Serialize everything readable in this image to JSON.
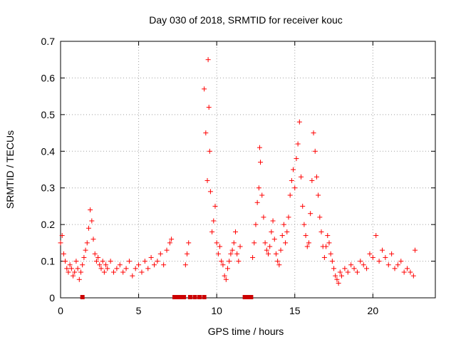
{
  "chart_data": {
    "type": "scatter",
    "title": "Day 030 of 2018, SRMTID for receiver kouc",
    "xlabel": "GPS time / hours",
    "ylabel": "SRMTID / TECUs",
    "xlim": [
      0,
      24
    ],
    "ylim": [
      0,
      0.7
    ],
    "x_ticks": [
      0,
      5,
      10,
      15,
      20
    ],
    "y_ticks": [
      0,
      0.1,
      0.2,
      0.3,
      0.4,
      0.5,
      0.6,
      0.7
    ],
    "x_tick_labels": [
      "0",
      "5",
      "10",
      "15",
      "20"
    ],
    "y_tick_labels": [
      "0",
      "0.1",
      "0.2",
      "0.3",
      "0.4",
      "0.5",
      "0.6",
      "0.7"
    ],
    "grid": true,
    "marker": "+",
    "series_color": "#ff0000",
    "gap_marker_color": "#cc0000",
    "series": [
      {
        "name": "SRMTID",
        "x": [
          0.0,
          0.1,
          0.2,
          0.3,
          0.4,
          0.5,
          0.6,
          0.7,
          0.8,
          0.9,
          1.0,
          1.1,
          1.2,
          1.3,
          1.4,
          1.5,
          1.6,
          1.7,
          1.8,
          1.9,
          2.0,
          2.1,
          2.2,
          2.3,
          2.4,
          2.5,
          2.6,
          2.7,
          2.8,
          2.9,
          3.0,
          3.2,
          3.4,
          3.6,
          3.8,
          4.0,
          4.2,
          4.4,
          4.6,
          4.8,
          5.0,
          5.2,
          5.4,
          5.6,
          5.8,
          6.0,
          6.2,
          6.4,
          6.6,
          6.8,
          7.0,
          7.1,
          8.0,
          8.1,
          8.2,
          9.2,
          9.3,
          9.4,
          9.45,
          9.5,
          9.55,
          9.6,
          9.7,
          9.8,
          9.9,
          10.0,
          10.1,
          10.2,
          10.3,
          10.4,
          10.5,
          10.6,
          10.7,
          10.8,
          10.9,
          11.0,
          11.1,
          11.2,
          11.3,
          11.4,
          11.5,
          12.3,
          12.4,
          12.5,
          12.6,
          12.7,
          12.75,
          12.8,
          12.9,
          13.0,
          13.1,
          13.2,
          13.3,
          13.4,
          13.5,
          13.6,
          13.7,
          13.8,
          13.9,
          14.0,
          14.1,
          14.2,
          14.3,
          14.4,
          14.5,
          14.6,
          14.7,
          14.8,
          14.9,
          15.0,
          15.1,
          15.2,
          15.3,
          15.4,
          15.5,
          15.6,
          15.7,
          15.8,
          15.9,
          16.0,
          16.1,
          16.2,
          16.3,
          16.4,
          16.5,
          16.6,
          16.7,
          16.8,
          16.9,
          17.0,
          17.1,
          17.2,
          17.3,
          17.4,
          17.5,
          17.6,
          17.7,
          17.8,
          17.9,
          18.0,
          18.2,
          18.4,
          18.6,
          18.8,
          19.0,
          19.2,
          19.4,
          19.6,
          19.8,
          20.0,
          20.2,
          20.4,
          20.6,
          20.8,
          21.0,
          21.2,
          21.4,
          21.6,
          21.8,
          22.0,
          22.2,
          22.4,
          22.6,
          22.7
        ],
        "y": [
          0.15,
          0.17,
          0.12,
          0.1,
          0.08,
          0.07,
          0.09,
          0.08,
          0.06,
          0.07,
          0.1,
          0.08,
          0.05,
          0.07,
          0.09,
          0.11,
          0.13,
          0.15,
          0.19,
          0.24,
          0.21,
          0.16,
          0.12,
          0.1,
          0.11,
          0.09,
          0.08,
          0.1,
          0.07,
          0.09,
          0.08,
          0.1,
          0.07,
          0.08,
          0.09,
          0.07,
          0.08,
          0.1,
          0.06,
          0.08,
          0.09,
          0.07,
          0.1,
          0.08,
          0.11,
          0.09,
          0.1,
          0.12,
          0.09,
          0.13,
          0.15,
          0.16,
          0.09,
          0.12,
          0.15,
          0.57,
          0.45,
          0.32,
          0.65,
          0.52,
          0.4,
          0.29,
          0.18,
          0.21,
          0.25,
          0.15,
          0.12,
          0.14,
          0.1,
          0.09,
          0.06,
          0.05,
          0.08,
          0.1,
          0.12,
          0.13,
          0.15,
          0.18,
          0.12,
          0.1,
          0.14,
          0.11,
          0.15,
          0.2,
          0.26,
          0.3,
          0.41,
          0.37,
          0.28,
          0.22,
          0.15,
          0.13,
          0.12,
          0.14,
          0.18,
          0.21,
          0.16,
          0.12,
          0.1,
          0.09,
          0.13,
          0.17,
          0.2,
          0.15,
          0.18,
          0.22,
          0.28,
          0.32,
          0.35,
          0.3,
          0.38,
          0.42,
          0.48,
          0.33,
          0.25,
          0.2,
          0.17,
          0.14,
          0.15,
          0.23,
          0.32,
          0.45,
          0.4,
          0.33,
          0.28,
          0.22,
          0.18,
          0.14,
          0.11,
          0.14,
          0.17,
          0.15,
          0.12,
          0.1,
          0.08,
          0.06,
          0.05,
          0.04,
          0.07,
          0.06,
          0.08,
          0.07,
          0.09,
          0.08,
          0.07,
          0.1,
          0.09,
          0.08,
          0.12,
          0.11,
          0.17,
          0.1,
          0.13,
          0.11,
          0.09,
          0.12,
          0.08,
          0.09,
          0.1,
          0.07,
          0.08,
          0.07,
          0.06,
          0.13
        ]
      }
    ],
    "gap_markers_x": [
      1.4,
      7.3,
      7.5,
      7.7,
      7.9,
      8.3,
      8.6,
      8.9,
      9.2,
      11.8,
      12.0,
      12.2
    ]
  }
}
